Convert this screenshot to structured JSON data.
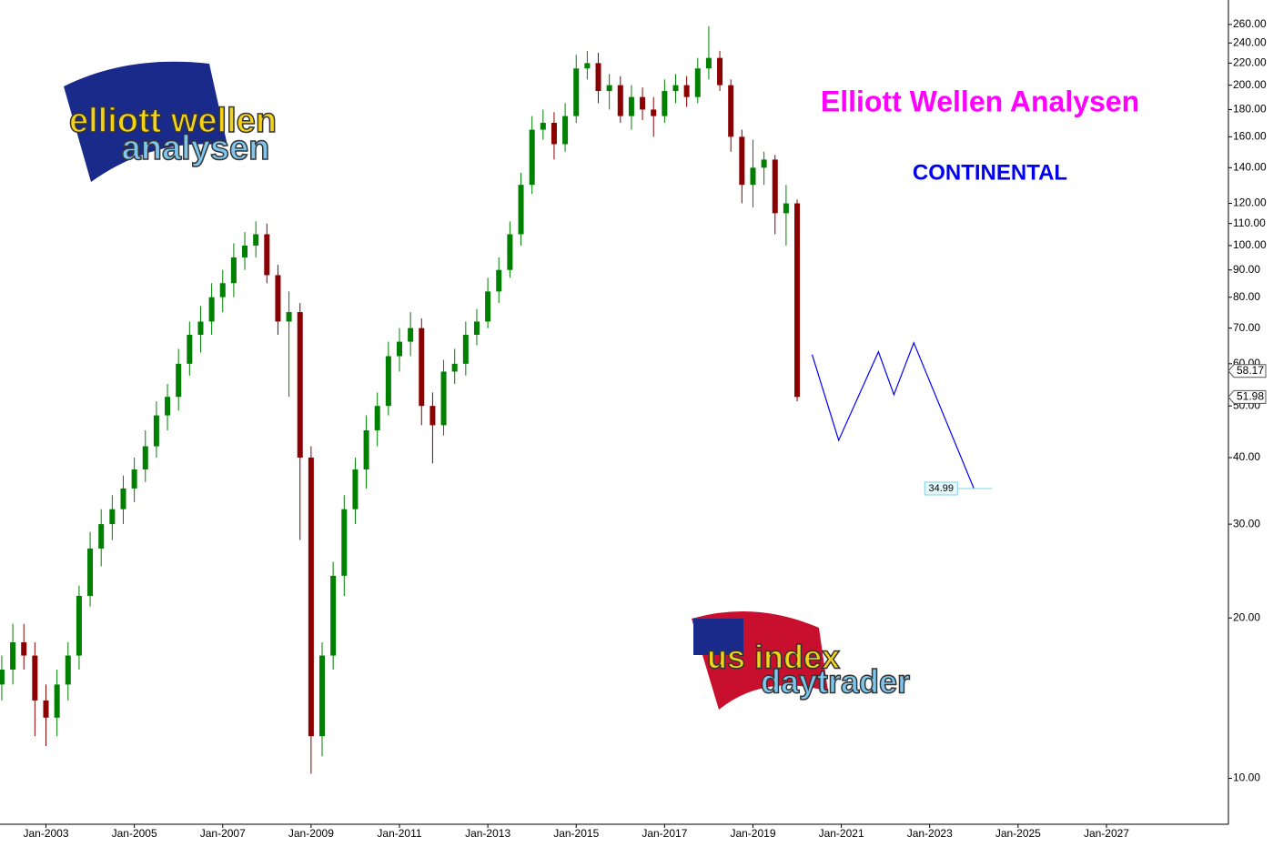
{
  "chart_data": {
    "type": "candlestick",
    "title": "Elliott Wellen Analysen",
    "subtitle": "CONTINENTAL",
    "log_scale": true,
    "up_color": "#008000",
    "down_color": "#8b0000",
    "x": [
      2002.0,
      2002.25,
      2002.5,
      2002.75,
      2003.0,
      2003.25,
      2003.5,
      2003.75,
      2004.0,
      2004.25,
      2004.5,
      2004.75,
      2005.0,
      2005.25,
      2005.5,
      2005.75,
      2006.0,
      2006.25,
      2006.5,
      2006.75,
      2007.0,
      2007.25,
      2007.5,
      2007.75,
      2008.0,
      2008.25,
      2008.5,
      2008.75,
      2009.0,
      2009.25,
      2009.5,
      2009.75,
      2010.0,
      2010.25,
      2010.5,
      2010.75,
      2011.0,
      2011.25,
      2011.5,
      2011.75,
      2012.0,
      2012.25,
      2012.5,
      2012.75,
      2013.0,
      2013.25,
      2013.5,
      2013.75,
      2014.0,
      2014.25,
      2014.5,
      2014.75,
      2015.0,
      2015.25,
      2015.5,
      2015.75,
      2016.0,
      2016.25,
      2016.5,
      2016.75,
      2017.0,
      2017.25,
      2017.5,
      2017.75,
      2018.0,
      2018.25,
      2018.5,
      2018.75,
      2019.0,
      2019.25,
      2019.5,
      2019.75,
      2020.0
    ],
    "open": [
      15,
      16,
      18,
      17,
      14,
      13,
      15,
      17,
      22,
      27,
      30,
      32,
      35,
      38,
      42,
      48,
      52,
      60,
      68,
      72,
      80,
      85,
      95,
      100,
      105,
      88,
      72,
      75,
      40,
      12,
      17,
      24,
      32,
      38,
      45,
      50,
      62,
      66,
      70,
      50,
      46,
      58,
      60,
      68,
      72,
      82,
      90,
      105,
      130,
      165,
      170,
      155,
      175,
      215,
      220,
      195,
      200,
      175,
      190,
      180,
      175,
      195,
      200,
      190,
      215,
      225,
      200,
      160,
      130,
      140,
      145,
      115,
      120
    ],
    "high": [
      17,
      19.5,
      19.5,
      18,
      15,
      16,
      18,
      23,
      29,
      32,
      34,
      37,
      40,
      45,
      51,
      55,
      64,
      72,
      77,
      85,
      90,
      101,
      106,
      111,
      110,
      92,
      82,
      78,
      42,
      18,
      25.5,
      34,
      40,
      48,
      53,
      66,
      70,
      75,
      73,
      53,
      61,
      64,
      72,
      76,
      87,
      95,
      111,
      137,
      175,
      180,
      178,
      185,
      228,
      232,
      230,
      210,
      208,
      200,
      198,
      190,
      205,
      210,
      208,
      225,
      258,
      232,
      205,
      165,
      158,
      150,
      148,
      130,
      122
    ],
    "low": [
      14,
      15,
      16,
      12,
      11.5,
      12,
      14,
      16,
      21,
      25,
      28,
      30,
      33,
      36,
      40,
      45,
      49,
      57,
      63,
      68,
      75,
      80,
      90,
      95,
      85,
      68,
      52,
      28,
      10.2,
      11,
      16,
      22,
      30,
      35,
      42,
      48,
      58,
      62,
      46,
      39,
      44,
      55,
      57,
      65,
      70,
      78,
      87,
      100,
      125,
      158,
      145,
      150,
      170,
      205,
      185,
      180,
      170,
      165,
      172,
      160,
      170,
      185,
      182,
      185,
      205,
      195,
      150,
      120,
      118,
      130,
      105,
      100,
      51
    ],
    "close": [
      16,
      18,
      17,
      14,
      13,
      15,
      17,
      22,
      27,
      30,
      32,
      35,
      38,
      42,
      48,
      52,
      60,
      68,
      72,
      80,
      85,
      95,
      100,
      105,
      88,
      72,
      75,
      40,
      12,
      17,
      24,
      32,
      38,
      45,
      50,
      62,
      66,
      70,
      50,
      46,
      58,
      60,
      68,
      72,
      82,
      90,
      105,
      130,
      165,
      170,
      155,
      175,
      215,
      220,
      195,
      200,
      175,
      190,
      180,
      175,
      195,
      200,
      190,
      215,
      225,
      200,
      160,
      130,
      140,
      145,
      115,
      120,
      51.98
    ],
    "projection": {
      "color": "#0000ff",
      "x": [
        2020.34,
        2020.94,
        2021.84,
        2022.19,
        2022.64,
        2024.0
      ],
      "values": [
        62.4,
        43.1,
        63.2,
        52.5,
        65.7,
        34.99
      ]
    },
    "target": 34.99,
    "price_markers": [
      58.17,
      51.98
    ],
    "xlim": [
      2001.96,
      2029.76
    ],
    "ylim": [
      8.2,
      289
    ],
    "xticks": [
      {
        "value": 2003,
        "label": "Jan-2003"
      },
      {
        "value": 2005,
        "label": "Jan-2005"
      },
      {
        "value": 2007,
        "label": "Jan-2007"
      },
      {
        "value": 2009,
        "label": "Jan-2009"
      },
      {
        "value": 2011,
        "label": "Jan-2011"
      },
      {
        "value": 2013,
        "label": "Jan-2013"
      },
      {
        "value": 2015,
        "label": "Jan-2015"
      },
      {
        "value": 2017,
        "label": "Jan-2017"
      },
      {
        "value": 2019,
        "label": "Jan-2019"
      },
      {
        "value": 2021,
        "label": "Jan-2021"
      },
      {
        "value": 2023,
        "label": "Jan-2023"
      },
      {
        "value": 2025,
        "label": "Jan-2025"
      },
      {
        "value": 2027,
        "label": "Jan-2027"
      }
    ],
    "yticks": [
      {
        "value": 10,
        "label": "10.00"
      },
      {
        "value": 20,
        "label": "20.00"
      },
      {
        "value": 30,
        "label": "30.00"
      },
      {
        "value": 40,
        "label": "40.00"
      },
      {
        "value": 50,
        "label": "50.00"
      },
      {
        "value": 60,
        "label": "60.00"
      },
      {
        "value": 70,
        "label": "70.00"
      },
      {
        "value": 80,
        "label": "80.00"
      },
      {
        "value": 90,
        "label": "90.00"
      },
      {
        "value": 100,
        "label": "100.00"
      },
      {
        "value": 110,
        "label": "110.00"
      },
      {
        "value": 120,
        "label": "120.00"
      },
      {
        "value": 140,
        "label": "140.00"
      },
      {
        "value": 160,
        "label": "160.00"
      },
      {
        "value": 180,
        "label": "180.00"
      },
      {
        "value": 200,
        "label": "200.00"
      },
      {
        "value": 220,
        "label": "220.00"
      },
      {
        "value": 240,
        "label": "240.00"
      },
      {
        "value": 260,
        "label": "260.00"
      }
    ],
    "logos": [
      "elliott wellen",
      "analysen",
      "us index",
      "daytrader"
    ]
  }
}
